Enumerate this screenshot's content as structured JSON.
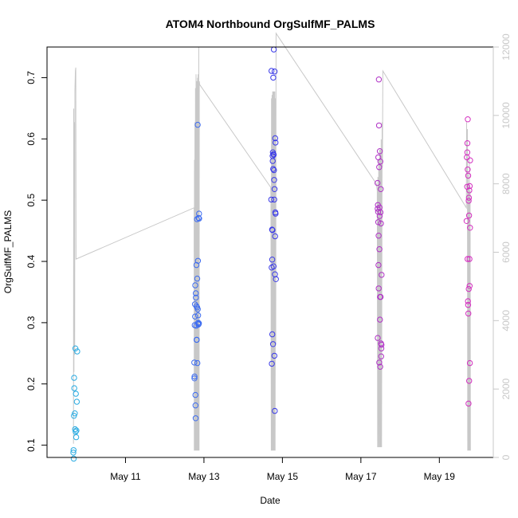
{
  "chart_data": {
    "type": "scatter",
    "title": "ATOM4 Northbound OrgSulfMF_PALMS",
    "xlabel": "Date",
    "ylabel": "OrgSulfMF_PALMS",
    "x_axis": {
      "type": "date",
      "range": [
        "2018-05-09T00:00",
        "2018-05-20T09:00"
      ],
      "ticks": [
        {
          "value": "2018-05-11",
          "label": "May 11"
        },
        {
          "value": "2018-05-13",
          "label": "May 13"
        },
        {
          "value": "2018-05-15",
          "label": "May 15"
        },
        {
          "value": "2018-05-17",
          "label": "May 17"
        },
        {
          "value": "2018-05-19",
          "label": "May 19"
        }
      ]
    },
    "y_axis": {
      "range": [
        0.08,
        0.75
      ],
      "ticks": [
        0.1,
        0.2,
        0.3,
        0.4,
        0.5,
        0.6,
        0.7
      ]
    },
    "y2_axis": {
      "range": [
        0,
        12000
      ],
      "ticks": [
        0,
        2000,
        4000,
        6000,
        8000,
        10000,
        12000
      ],
      "color": "#c8c8c8"
    },
    "grid": false,
    "series": [
      {
        "marker": "circle-open",
        "color": "#29abe2",
        "points": [
          [
            "2018-05-09T16:05",
            0.088
          ],
          [
            "2018-05-09T16:15",
            0.092
          ],
          [
            "2018-05-09T16:20",
            0.078
          ],
          [
            "2018-05-09T16:30",
            0.148
          ],
          [
            "2018-05-09T16:35",
            0.21
          ],
          [
            "2018-05-09T16:40",
            0.193
          ],
          [
            "2018-05-09T17:00",
            0.152
          ],
          [
            "2018-05-09T17:10",
            0.126
          ],
          [
            "2018-05-09T17:20",
            0.258
          ],
          [
            "2018-05-09T17:30",
            0.122
          ],
          [
            "2018-05-09T17:40",
            0.184
          ],
          [
            "2018-05-09T17:50",
            0.113
          ],
          [
            "2018-05-09T18:00",
            0.124
          ],
          [
            "2018-05-09T18:15",
            0.171
          ],
          [
            "2018-05-09T18:30",
            0.253
          ]
        ]
      },
      {
        "marker": "circle-open",
        "color": "#3d6cf0",
        "points": [
          [
            "2018-05-12T18:05",
            0.235
          ],
          [
            "2018-05-12T18:10",
            0.209
          ],
          [
            "2018-05-12T18:15",
            0.212
          ],
          [
            "2018-05-12T18:20",
            0.296
          ],
          [
            "2018-05-12T18:30",
            0.33
          ],
          [
            "2018-05-12T18:35",
            0.31
          ],
          [
            "2018-05-12T18:40",
            0.361
          ],
          [
            "2018-05-12T18:45",
            0.182
          ],
          [
            "2018-05-12T18:50",
            0.165
          ],
          [
            "2018-05-12T18:55",
            0.144
          ],
          [
            "2018-05-12T19:00",
            0.348
          ],
          [
            "2018-05-12T19:05",
            0.341
          ],
          [
            "2018-05-12T19:15",
            0.295
          ],
          [
            "2018-05-12T19:20",
            0.327
          ],
          [
            "2018-05-12T19:25",
            0.394
          ],
          [
            "2018-05-12T19:30",
            0.272
          ],
          [
            "2018-05-12T19:35",
            0.272
          ],
          [
            "2018-05-12T19:45",
            0.469
          ],
          [
            "2018-05-12T19:50",
            0.325
          ],
          [
            "2018-05-12T19:55",
            0.372
          ],
          [
            "2018-05-12T20:00",
            0.234
          ],
          [
            "2018-05-12T20:10",
            0.623
          ],
          [
            "2018-05-12T20:15",
            0.322
          ],
          [
            "2018-05-12T20:20",
            0.401
          ],
          [
            "2018-05-12T20:25",
            0.312
          ],
          [
            "2018-05-12T20:30",
            0.3
          ],
          [
            "2018-05-12T20:35",
            0.297
          ],
          [
            "2018-05-12T20:40",
            0.471
          ],
          [
            "2018-05-12T20:50",
            0.298
          ],
          [
            "2018-05-12T20:55",
            0.299
          ],
          [
            "2018-05-12T21:00",
            0.478
          ],
          [
            "2018-05-12T21:05",
            0.47
          ]
        ]
      },
      {
        "marker": "circle-open",
        "color": "#3a3ae8",
        "points": [
          [
            "2018-05-14T17:10",
            0.501
          ],
          [
            "2018-05-14T17:20",
            0.711
          ],
          [
            "2018-05-14T17:25",
            0.39
          ],
          [
            "2018-05-14T17:30",
            0.233
          ],
          [
            "2018-05-14T17:40",
            0.452
          ],
          [
            "2018-05-14T17:45",
            0.403
          ],
          [
            "2018-05-14T17:50",
            0.281
          ],
          [
            "2018-05-14T17:55",
            0.451
          ],
          [
            "2018-05-14T18:00",
            0.572
          ],
          [
            "2018-05-14T18:05",
            0.564
          ],
          [
            "2018-05-14T18:10",
            0.578
          ],
          [
            "2018-05-14T18:15",
            0.265
          ],
          [
            "2018-05-14T18:20",
            0.551
          ],
          [
            "2018-05-14T18:25",
            0.7
          ],
          [
            "2018-05-14T18:30",
            0.575
          ],
          [
            "2018-05-14T18:35",
            0.392
          ],
          [
            "2018-05-14T18:40",
            0.574
          ],
          [
            "2018-05-14T18:45",
            0.746
          ],
          [
            "2018-05-14T18:50",
            0.549
          ],
          [
            "2018-05-14T18:55",
            0.533
          ],
          [
            "2018-05-14T19:00",
            0.501
          ],
          [
            "2018-05-14T19:05",
            0.246
          ],
          [
            "2018-05-14T19:10",
            0.518
          ],
          [
            "2018-05-14T19:15",
            0.71
          ],
          [
            "2018-05-14T19:20",
            0.156
          ],
          [
            "2018-05-14T19:25",
            0.379
          ],
          [
            "2018-05-14T19:30",
            0.441
          ],
          [
            "2018-05-14T19:35",
            0.601
          ],
          [
            "2018-05-14T19:40",
            0.48
          ],
          [
            "2018-05-14T19:45",
            0.594
          ],
          [
            "2018-05-14T19:50",
            0.478
          ],
          [
            "2018-05-14T20:00",
            0.371
          ]
        ]
      },
      {
        "marker": "circle-open",
        "color": "#b031c6",
        "points": [
          [
            "2018-05-17T10:10",
            0.528
          ],
          [
            "2018-05-17T10:15",
            0.486
          ],
          [
            "2018-05-17T10:20",
            0.275
          ],
          [
            "2018-05-17T10:25",
            0.492
          ],
          [
            "2018-05-17T10:30",
            0.481
          ],
          [
            "2018-05-17T10:35",
            0.464
          ],
          [
            "2018-05-17T10:40",
            0.57
          ],
          [
            "2018-05-17T10:45",
            0.394
          ],
          [
            "2018-05-17T10:50",
            0.442
          ],
          [
            "2018-05-17T10:55",
            0.356
          ],
          [
            "2018-05-17T11:00",
            0.697
          ],
          [
            "2018-05-17T11:05",
            0.622
          ],
          [
            "2018-05-17T11:10",
            0.554
          ],
          [
            "2018-05-17T11:15",
            0.235
          ],
          [
            "2018-05-17T11:20",
            0.42
          ],
          [
            "2018-05-17T11:25",
            0.488
          ],
          [
            "2018-05-17T11:30",
            0.474
          ],
          [
            "2018-05-17T11:35",
            0.58
          ],
          [
            "2018-05-17T11:40",
            0.305
          ],
          [
            "2018-05-17T11:45",
            0.342
          ],
          [
            "2018-05-17T11:50",
            0.228
          ],
          [
            "2018-05-17T11:55",
            0.563
          ],
          [
            "2018-05-17T12:00",
            0.48
          ],
          [
            "2018-05-17T12:05",
            0.342
          ],
          [
            "2018-05-17T12:10",
            0.518
          ],
          [
            "2018-05-17T12:15",
            0.462
          ],
          [
            "2018-05-17T12:20",
            0.266
          ],
          [
            "2018-05-17T12:25",
            0.245
          ],
          [
            "2018-05-17T12:30",
            0.258
          ],
          [
            "2018-05-17T12:35",
            0.264
          ],
          [
            "2018-05-17T12:40",
            0.378
          ]
        ]
      },
      {
        "marker": "circle-open",
        "color": "#d42fc0",
        "points": [
          [
            "2018-05-19T16:40",
            0.466
          ],
          [
            "2018-05-19T16:50",
            0.57
          ],
          [
            "2018-05-19T17:00",
            0.522
          ],
          [
            "2018-05-19T17:05",
            0.578
          ],
          [
            "2018-05-19T17:10",
            0.593
          ],
          [
            "2018-05-19T17:15",
            0.404
          ],
          [
            "2018-05-19T17:20",
            0.55
          ],
          [
            "2018-05-19T17:25",
            0.632
          ],
          [
            "2018-05-19T17:30",
            0.335
          ],
          [
            "2018-05-19T17:35",
            0.329
          ],
          [
            "2018-05-19T17:40",
            0.54
          ],
          [
            "2018-05-19T17:45",
            0.315
          ],
          [
            "2018-05-19T17:50",
            0.168
          ],
          [
            "2018-05-19T17:55",
            0.499
          ],
          [
            "2018-05-19T18:00",
            0.355
          ],
          [
            "2018-05-19T18:05",
            0.504
          ],
          [
            "2018-05-19T18:10",
            0.475
          ],
          [
            "2018-05-19T18:15",
            0.205
          ],
          [
            "2018-05-19T18:20",
            0.516
          ],
          [
            "2018-05-19T18:25",
            0.404
          ],
          [
            "2018-05-19T18:30",
            0.36
          ],
          [
            "2018-05-19T18:35",
            0.523
          ],
          [
            "2018-05-19T18:40",
            0.234
          ],
          [
            "2018-05-19T18:45",
            0.455
          ],
          [
            "2018-05-19T18:50",
            0.565
          ]
        ]
      }
    ],
    "secondary_line": {
      "color": "#c8c8c8",
      "axis": "y2",
      "points": [
        [
          "2018-05-09T16:10",
          400
        ],
        [
          "2018-05-09T16:20",
          10200
        ],
        [
          "2018-05-09T16:30",
          2500
        ],
        [
          "2018-05-09T16:40",
          9800
        ],
        [
          "2018-05-09T16:55",
          3000
        ],
        [
          "2018-05-09T17:05",
          10700
        ],
        [
          "2018-05-09T17:20",
          11300
        ],
        [
          "2018-05-09T17:35",
          11400
        ],
        [
          "2018-05-09T17:45",
          5800
        ],
        [
          "2018-05-12T18:00",
          7300
        ],
        [
          "2018-05-12T18:05",
          200
        ],
        [
          "2018-05-12T18:10",
          8700
        ],
        [
          "2018-05-12T18:20",
          200
        ],
        [
          "2018-05-12T18:30",
          9800
        ],
        [
          "2018-05-12T18:40",
          200
        ],
        [
          "2018-05-12T18:50",
          10800
        ],
        [
          "2018-05-12T19:00",
          200
        ],
        [
          "2018-05-12T19:10",
          11200
        ],
        [
          "2018-05-12T19:20",
          200
        ],
        [
          "2018-05-12T19:35",
          11000
        ],
        [
          "2018-05-12T19:50",
          200
        ],
        [
          "2018-05-12T20:05",
          11100
        ],
        [
          "2018-05-12T20:15",
          200
        ],
        [
          "2018-05-12T20:25",
          11200
        ],
        [
          "2018-05-12T20:35",
          200
        ],
        [
          "2018-05-12T20:50",
          12000
        ],
        [
          "2018-05-12T21:00",
          200
        ],
        [
          "2018-05-12T21:10",
          11000
        ],
        [
          "2018-05-12T21:25",
          10900
        ],
        [
          "2018-05-14T16:50",
          7900
        ],
        [
          "2018-05-14T17:00",
          7500
        ],
        [
          "2018-05-14T17:10",
          200
        ],
        [
          "2018-05-14T17:20",
          10500
        ],
        [
          "2018-05-14T17:30",
          200
        ],
        [
          "2018-05-14T17:40",
          10600
        ],
        [
          "2018-05-14T17:50",
          200
        ],
        [
          "2018-05-14T18:05",
          10700
        ],
        [
          "2018-05-14T18:15",
          200
        ],
        [
          "2018-05-14T18:30",
          10700
        ],
        [
          "2018-05-14T18:40",
          200
        ],
        [
          "2018-05-14T18:55",
          10700
        ],
        [
          "2018-05-14T19:05",
          200
        ],
        [
          "2018-05-14T19:20",
          10700
        ],
        [
          "2018-05-14T19:30",
          200
        ],
        [
          "2018-05-14T19:45",
          10500
        ],
        [
          "2018-05-14T19:55",
          3300
        ],
        [
          "2018-05-14T20:05",
          12400
        ],
        [
          "2018-05-17T09:30",
          8000
        ],
        [
          "2018-05-17T10:00",
          7800
        ],
        [
          "2018-05-17T10:15",
          300
        ],
        [
          "2018-05-17T10:25",
          8200
        ],
        [
          "2018-05-17T10:40",
          300
        ],
        [
          "2018-05-17T10:55",
          8700
        ],
        [
          "2018-05-17T11:10",
          300
        ],
        [
          "2018-05-17T11:25",
          9000
        ],
        [
          "2018-05-17T11:40",
          300
        ],
        [
          "2018-05-17T11:55",
          9000
        ],
        [
          "2018-05-17T12:10",
          300
        ],
        [
          "2018-05-17T12:25",
          9300
        ],
        [
          "2018-05-17T12:40",
          300
        ],
        [
          "2018-05-17T13:00",
          9800
        ],
        [
          "2018-05-17T13:10",
          8500
        ],
        [
          "2018-05-17T13:25",
          11300
        ],
        [
          "2018-05-19T16:30",
          7300
        ],
        [
          "2018-05-19T16:40",
          9800
        ],
        [
          "2018-05-19T16:50",
          8300
        ],
        [
          "2018-05-19T17:00",
          9500
        ],
        [
          "2018-05-19T17:10",
          9600
        ],
        [
          "2018-05-19T17:20",
          200
        ],
        [
          "2018-05-19T17:30",
          8300
        ],
        [
          "2018-05-19T17:40",
          200
        ],
        [
          "2018-05-19T17:50",
          8000
        ],
        [
          "2018-05-19T18:05",
          200
        ],
        [
          "2018-05-19T18:20",
          8800
        ],
        [
          "2018-05-19T18:35",
          200
        ],
        [
          "2018-05-19T18:50",
          7800
        ],
        [
          "2018-05-19T19:00",
          200
        ]
      ]
    }
  }
}
